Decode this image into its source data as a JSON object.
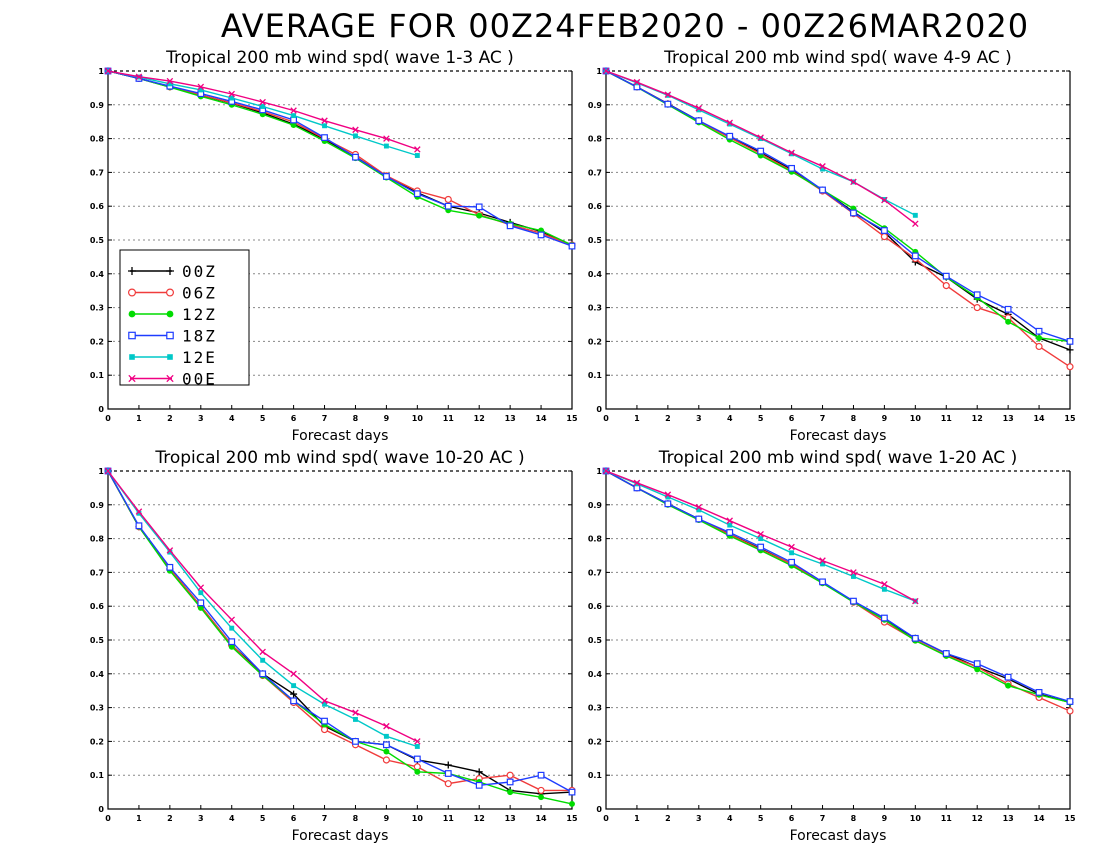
{
  "main_title": "AVERAGE FOR 00Z24FEB2020 - 00Z26MAR2020",
  "legend": [
    {
      "label": "00Z",
      "color": "#000000",
      "marker": "plus"
    },
    {
      "label": "06Z",
      "color": "#f03c3c",
      "marker": "circle"
    },
    {
      "label": "12Z",
      "color": "#00dc00",
      "marker": "filled-circle"
    },
    {
      "label": "18Z",
      "color": "#1e3cff",
      "marker": "square"
    },
    {
      "label": "12E",
      "color": "#00c8c8",
      "marker": "filled-square"
    },
    {
      "label": "00E",
      "color": "#f00082",
      "marker": "x"
    }
  ],
  "chart_data": [
    {
      "type": "line",
      "title": "Tropical 200 mb wind spd( wave 1-3 AC )",
      "xlabel": "Forecast days",
      "ylabel": "",
      "xlim": [
        0,
        15
      ],
      "ylim": [
        0,
        1
      ],
      "xticks": [
        "0",
        "1",
        "2",
        "3",
        "4",
        "5",
        "6",
        "7",
        "8",
        "9",
        "10",
        "11",
        "12",
        "13",
        "14",
        "15"
      ],
      "yticks": [
        "0",
        "0.1",
        "0.2",
        "0.3",
        "0.4",
        "0.5",
        "0.6",
        "0.7",
        "0.8",
        "0.9",
        "1"
      ],
      "grid": "horizontal dotted",
      "legend_position": "lower-left",
      "series": [
        {
          "name": "00Z",
          "x": [
            0,
            1,
            2,
            3,
            4,
            5,
            6,
            7,
            8,
            9,
            10,
            11,
            12,
            13,
            14,
            15
          ],
          "values": [
            1,
            0.978,
            0.953,
            0.928,
            0.905,
            0.876,
            0.843,
            0.798,
            0.746,
            0.688,
            0.64,
            0.6,
            0.58,
            0.552,
            0.525,
            0.485
          ]
        },
        {
          "name": "06Z",
          "x": [
            0,
            1,
            2,
            3,
            4,
            5,
            6,
            7,
            8,
            9,
            10,
            11,
            12,
            13,
            14,
            15
          ],
          "values": [
            1,
            0.978,
            0.953,
            0.929,
            0.906,
            0.88,
            0.849,
            0.8,
            0.753,
            0.69,
            0.645,
            0.62,
            0.575,
            0.545,
            0.52,
            0.485
          ]
        },
        {
          "name": "12Z",
          "x": [
            0,
            1,
            2,
            3,
            4,
            5,
            6,
            7,
            8,
            9,
            10,
            11,
            12,
            13,
            14,
            15
          ],
          "values": [
            1,
            0.978,
            0.952,
            0.925,
            0.9,
            0.872,
            0.84,
            0.793,
            0.742,
            0.685,
            0.628,
            0.588,
            0.572,
            0.548,
            0.528,
            0.485
          ]
        },
        {
          "name": "18Z",
          "x": [
            0,
            1,
            2,
            3,
            4,
            5,
            6,
            7,
            8,
            9,
            10,
            11,
            12,
            13,
            14,
            15
          ],
          "values": [
            1,
            0.978,
            0.955,
            0.933,
            0.91,
            0.885,
            0.855,
            0.803,
            0.745,
            0.688,
            0.637,
            0.6,
            0.598,
            0.542,
            0.515,
            0.482
          ]
        },
        {
          "name": "12E",
          "x": [
            0,
            1,
            2,
            3,
            4,
            5,
            6,
            7,
            8,
            9,
            10
          ],
          "values": [
            1,
            0.982,
            0.962,
            0.944,
            0.92,
            0.895,
            0.868,
            0.838,
            0.808,
            0.778,
            0.75
          ]
        },
        {
          "name": "00E",
          "x": [
            0,
            1,
            2,
            3,
            4,
            5,
            6,
            7,
            8,
            9,
            10
          ],
          "values": [
            1,
            0.983,
            0.97,
            0.953,
            0.932,
            0.908,
            0.883,
            0.853,
            0.826,
            0.8,
            0.768
          ]
        }
      ]
    },
    {
      "type": "line",
      "title": "Tropical 200 mb wind spd( wave 4-9 AC )",
      "xlabel": "Forecast days",
      "ylabel": "",
      "xlim": [
        0,
        15
      ],
      "ylim": [
        0,
        1
      ],
      "xticks": [
        "0",
        "1",
        "2",
        "3",
        "4",
        "5",
        "6",
        "7",
        "8",
        "9",
        "10",
        "11",
        "12",
        "13",
        "14",
        "15"
      ],
      "yticks": [
        "0",
        "0.1",
        "0.2",
        "0.3",
        "0.4",
        "0.5",
        "0.6",
        "0.7",
        "0.8",
        "0.9",
        "1"
      ],
      "grid": "horizontal dotted",
      "series": [
        {
          "name": "00Z",
          "x": [
            0,
            1,
            2,
            3,
            4,
            5,
            6,
            7,
            8,
            9,
            10,
            11,
            12,
            13,
            14,
            15
          ],
          "values": [
            1,
            0.953,
            0.903,
            0.853,
            0.805,
            0.758,
            0.708,
            0.648,
            0.583,
            0.523,
            0.435,
            0.39,
            0.325,
            0.28,
            0.21,
            0.175
          ]
        },
        {
          "name": "06Z",
          "x": [
            0,
            1,
            2,
            3,
            4,
            5,
            6,
            7,
            8,
            9,
            10,
            11,
            12,
            13,
            14,
            15
          ],
          "values": [
            1,
            0.953,
            0.902,
            0.851,
            0.803,
            0.755,
            0.705,
            0.645,
            0.578,
            0.51,
            0.445,
            0.365,
            0.3,
            0.27,
            0.185,
            0.125
          ]
        },
        {
          "name": "12Z",
          "x": [
            0,
            1,
            2,
            3,
            4,
            5,
            6,
            7,
            8,
            9,
            10,
            11,
            12,
            13,
            14,
            15
          ],
          "values": [
            1,
            0.952,
            0.9,
            0.848,
            0.797,
            0.75,
            0.702,
            0.648,
            0.593,
            0.535,
            0.465,
            0.39,
            0.33,
            0.258,
            0.21,
            0.2
          ]
        },
        {
          "name": "18Z",
          "x": [
            0,
            1,
            2,
            3,
            4,
            5,
            6,
            7,
            8,
            9,
            10,
            11,
            12,
            13,
            14,
            15
          ],
          "values": [
            1,
            0.953,
            0.902,
            0.853,
            0.807,
            0.763,
            0.712,
            0.648,
            0.58,
            0.528,
            0.453,
            0.393,
            0.338,
            0.295,
            0.23,
            0.2
          ]
        },
        {
          "name": "12E",
          "x": [
            0,
            1,
            2,
            3,
            4,
            5,
            6,
            7,
            8,
            9,
            10
          ],
          "values": [
            1,
            0.965,
            0.928,
            0.885,
            0.843,
            0.8,
            0.755,
            0.71,
            0.672,
            0.62,
            0.573
          ]
        },
        {
          "name": "00E",
          "x": [
            0,
            1,
            2,
            3,
            4,
            5,
            6,
            7,
            8,
            9,
            10
          ],
          "values": [
            1,
            0.967,
            0.93,
            0.89,
            0.847,
            0.803,
            0.758,
            0.718,
            0.672,
            0.618,
            0.548
          ]
        }
      ]
    },
    {
      "type": "line",
      "title": "Tropical 200 mb wind spd( wave 10-20 AC )",
      "xlabel": "Forecast days",
      "ylabel": "",
      "xlim": [
        0,
        15
      ],
      "ylim": [
        0,
        1
      ],
      "xticks": [
        "0",
        "1",
        "2",
        "3",
        "4",
        "5",
        "6",
        "7",
        "8",
        "9",
        "10",
        "11",
        "12",
        "13",
        "14",
        "15"
      ],
      "yticks": [
        "0",
        "0.1",
        "0.2",
        "0.3",
        "0.4",
        "0.5",
        "0.6",
        "0.7",
        "0.8",
        "0.9",
        "1"
      ],
      "grid": "horizontal dotted",
      "series": [
        {
          "name": "00Z",
          "x": [
            0,
            1,
            2,
            3,
            4,
            5,
            6,
            7,
            8,
            9,
            10,
            11,
            12,
            13,
            14,
            15
          ],
          "values": [
            1,
            0.835,
            0.71,
            0.6,
            0.485,
            0.4,
            0.34,
            0.245,
            0.2,
            0.19,
            0.145,
            0.13,
            0.11,
            0.055,
            0.045,
            0.05
          ]
        },
        {
          "name": "06Z",
          "x": [
            0,
            1,
            2,
            3,
            4,
            5,
            6,
            7,
            8,
            9,
            10,
            11,
            12,
            13,
            14,
            15
          ],
          "values": [
            1,
            0.835,
            0.71,
            0.6,
            0.485,
            0.395,
            0.315,
            0.235,
            0.19,
            0.145,
            0.125,
            0.075,
            0.09,
            0.1,
            0.055,
            0.055
          ]
        },
        {
          "name": "12Z",
          "x": [
            0,
            1,
            2,
            3,
            4,
            5,
            6,
            7,
            8,
            9,
            10,
            11,
            12,
            13,
            14,
            15
          ],
          "values": [
            1,
            0.835,
            0.705,
            0.595,
            0.48,
            0.395,
            0.32,
            0.25,
            0.2,
            0.17,
            0.11,
            0.105,
            0.08,
            0.05,
            0.035,
            0.015
          ]
        },
        {
          "name": "18Z",
          "x": [
            0,
            1,
            2,
            3,
            4,
            5,
            6,
            7,
            8,
            9,
            10,
            11,
            12,
            13,
            14,
            15
          ],
          "values": [
            1,
            0.838,
            0.715,
            0.61,
            0.495,
            0.4,
            0.32,
            0.26,
            0.2,
            0.19,
            0.148,
            0.105,
            0.07,
            0.08,
            0.1,
            0.05
          ]
        },
        {
          "name": "12E",
          "x": [
            0,
            1,
            2,
            3,
            4,
            5,
            6,
            7,
            8,
            9,
            10
          ],
          "values": [
            1,
            0.875,
            0.76,
            0.64,
            0.535,
            0.44,
            0.365,
            0.31,
            0.265,
            0.215,
            0.185
          ]
        },
        {
          "name": "00E",
          "x": [
            0,
            1,
            2,
            3,
            4,
            5,
            6,
            7,
            8,
            9,
            10
          ],
          "values": [
            1,
            0.88,
            0.765,
            0.655,
            0.56,
            0.465,
            0.4,
            0.32,
            0.285,
            0.245,
            0.2
          ]
        }
      ]
    },
    {
      "type": "line",
      "title": "Tropical 200 mb wind spd( wave 1-20 AC )",
      "xlabel": "Forecast days",
      "ylabel": "",
      "xlim": [
        0,
        15
      ],
      "ylim": [
        0,
        1
      ],
      "xticks": [
        "0",
        "1",
        "2",
        "3",
        "4",
        "5",
        "6",
        "7",
        "8",
        "9",
        "10",
        "11",
        "12",
        "13",
        "14",
        "15"
      ],
      "yticks": [
        "0",
        "0.1",
        "0.2",
        "0.3",
        "0.4",
        "0.5",
        "0.6",
        "0.7",
        "0.8",
        "0.9",
        "1"
      ],
      "grid": "horizontal dotted",
      "series": [
        {
          "name": "00Z",
          "x": [
            0,
            1,
            2,
            3,
            4,
            5,
            6,
            7,
            8,
            9,
            10,
            11,
            12,
            13,
            14,
            15
          ],
          "values": [
            1,
            0.95,
            0.903,
            0.858,
            0.813,
            0.77,
            0.725,
            0.67,
            0.613,
            0.56,
            0.505,
            0.46,
            0.42,
            0.385,
            0.34,
            0.315
          ]
        },
        {
          "name": "06Z",
          "x": [
            0,
            1,
            2,
            3,
            4,
            5,
            6,
            7,
            8,
            9,
            10,
            11,
            12,
            13,
            14,
            15
          ],
          "values": [
            1,
            0.95,
            0.902,
            0.857,
            0.812,
            0.768,
            0.725,
            0.67,
            0.612,
            0.553,
            0.5,
            0.455,
            0.42,
            0.37,
            0.33,
            0.29
          ]
        },
        {
          "name": "12Z",
          "x": [
            0,
            1,
            2,
            3,
            4,
            5,
            6,
            7,
            8,
            9,
            10,
            11,
            12,
            13,
            14,
            15
          ],
          "values": [
            1,
            0.95,
            0.9,
            0.855,
            0.808,
            0.765,
            0.72,
            0.668,
            0.612,
            0.56,
            0.498,
            0.453,
            0.413,
            0.365,
            0.338,
            0.315
          ]
        },
        {
          "name": "18Z",
          "x": [
            0,
            1,
            2,
            3,
            4,
            5,
            6,
            7,
            8,
            9,
            10,
            11,
            12,
            13,
            14,
            15
          ],
          "values": [
            1,
            0.95,
            0.903,
            0.858,
            0.818,
            0.775,
            0.73,
            0.672,
            0.615,
            0.565,
            0.505,
            0.46,
            0.43,
            0.39,
            0.345,
            0.318
          ]
        },
        {
          "name": "12E",
          "x": [
            0,
            1,
            2,
            3,
            4,
            5,
            6,
            7,
            8,
            9,
            10
          ],
          "values": [
            1,
            0.962,
            0.923,
            0.885,
            0.84,
            0.8,
            0.758,
            0.725,
            0.688,
            0.65,
            0.615
          ]
        },
        {
          "name": "00E",
          "x": [
            0,
            1,
            2,
            3,
            4,
            5,
            6,
            7,
            8,
            9,
            10
          ],
          "values": [
            1,
            0.965,
            0.93,
            0.893,
            0.853,
            0.813,
            0.775,
            0.735,
            0.7,
            0.665,
            0.615
          ]
        }
      ]
    }
  ]
}
